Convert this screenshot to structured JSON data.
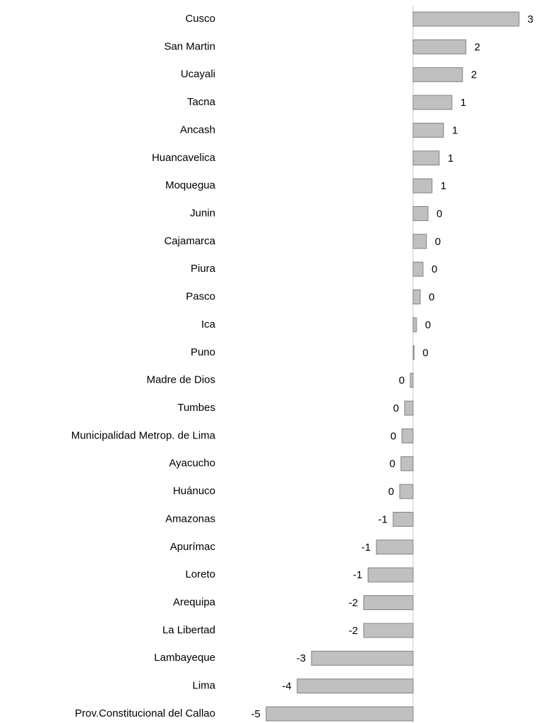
{
  "chart_data": {
    "type": "barh",
    "categories": [
      "Cusco",
      "San Martin",
      "Ucayali",
      "Tacna",
      "Ancash",
      "Huancavelica",
      "Moquegua",
      "Junin",
      "Cajamarca",
      "Piura",
      "Pasco",
      "Ica",
      "Puno",
      "Madre de Dios",
      "Tumbes",
      "Municipalidad Metrop. de Lima",
      "Ayacucho",
      "Huánuco",
      "Amazonas",
      "Apurímac",
      "Loreto",
      "Arequipa",
      "La Libertad",
      "Lambayeque",
      "Lima",
      "Prov.Constitucional del Callao"
    ],
    "values": [
      3.41,
      1.7,
      1.59,
      1.25,
      0.98,
      0.84,
      0.61,
      0.48,
      0.43,
      0.32,
      0.23,
      0.11,
      0.03,
      -0.09,
      -0.27,
      -0.36,
      -0.39,
      -0.43,
      -0.64,
      -1.18,
      -1.45,
      -1.59,
      -1.59,
      -3.27,
      -3.73,
      -4.73
    ],
    "value_labels": [
      "3",
      "2",
      "2",
      "1",
      "1",
      "1",
      "1",
      "0",
      "0",
      "0",
      "0",
      "0",
      "0",
      "0",
      "0",
      "0",
      "0",
      "0",
      "-1",
      "-1",
      "-1",
      "-2",
      "-2",
      "-3",
      "-4",
      "-5"
    ],
    "color": "#c0c0c0",
    "xlim": [
      -5,
      4
    ]
  }
}
